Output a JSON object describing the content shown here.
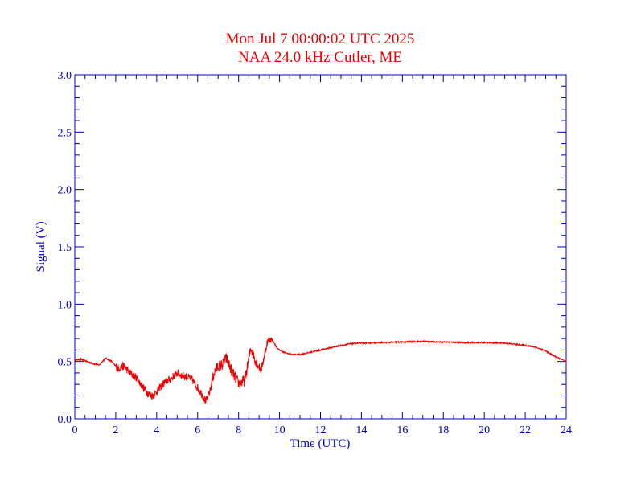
{
  "chart_data": {
    "type": "line",
    "title": "Mon Jul 7 00:00:02 UTC 2025",
    "subtitle": "NAA 24.0 kHz Cutler, ME",
    "xlabel": "Time (UTC)",
    "ylabel": "Signal (V)",
    "xlim": [
      0,
      24
    ],
    "ylim": [
      0,
      3.0
    ],
    "x_ticks": [
      0,
      2,
      4,
      6,
      8,
      10,
      12,
      14,
      16,
      18,
      20,
      22,
      24
    ],
    "x_tick_labels": [
      "0",
      "2",
      "4",
      "6",
      "8",
      "10",
      "12",
      "14",
      "16",
      "18",
      "20",
      "22",
      "24"
    ],
    "y_ticks": [
      0,
      0.5,
      1.0,
      1.5,
      2.0,
      2.5,
      3.0
    ],
    "y_tick_labels": [
      "0.0",
      "0.5",
      "1.0",
      "1.5",
      "2.0",
      "2.5",
      "3.0"
    ],
    "grid": false,
    "series": [
      {
        "color": "#ee0000",
        "x": [
          0,
          0.3,
          0.6,
          0.9,
          1.2,
          1.5,
          1.8,
          2.1,
          2.4,
          2.7,
          3.0,
          3.3,
          3.6,
          3.8,
          4.1,
          4.4,
          4.7,
          5.0,
          5.2,
          5.4,
          5.7,
          6.0,
          6.2,
          6.4,
          6.6,
          6.8,
          7.0,
          7.2,
          7.4,
          7.6,
          7.8,
          8.0,
          8.3,
          8.6,
          8.8,
          9.1,
          9.4,
          9.6,
          9.9,
          10.2,
          10.6,
          11.0,
          11.5,
          12.0,
          12.5,
          13.0,
          13.5,
          14.0,
          15.0,
          16.0,
          17.0,
          18.0,
          19.0,
          20.0,
          21.0,
          22.0,
          22.5,
          23.0,
          23.5,
          24.0
        ],
        "values": [
          0.51,
          0.52,
          0.5,
          0.48,
          0.47,
          0.53,
          0.5,
          0.44,
          0.46,
          0.4,
          0.36,
          0.28,
          0.22,
          0.2,
          0.26,
          0.32,
          0.35,
          0.4,
          0.38,
          0.37,
          0.35,
          0.27,
          0.22,
          0.15,
          0.24,
          0.4,
          0.46,
          0.47,
          0.53,
          0.44,
          0.37,
          0.31,
          0.33,
          0.62,
          0.52,
          0.42,
          0.67,
          0.7,
          0.61,
          0.58,
          0.56,
          0.56,
          0.58,
          0.6,
          0.62,
          0.64,
          0.655,
          0.66,
          0.665,
          0.67,
          0.675,
          0.67,
          0.665,
          0.665,
          0.66,
          0.64,
          0.625,
          0.59,
          0.54,
          0.5
        ]
      }
    ]
  }
}
